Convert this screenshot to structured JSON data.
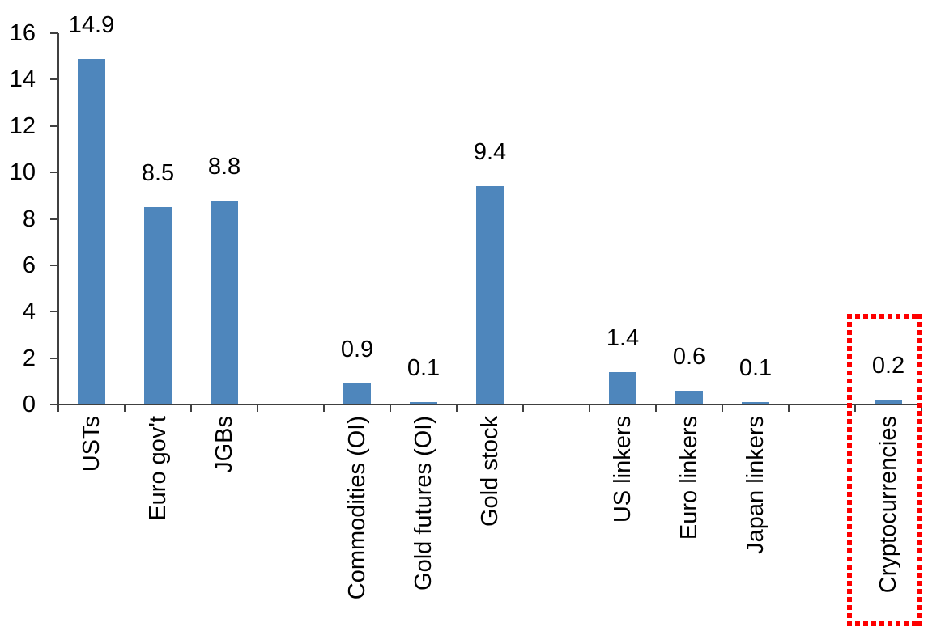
{
  "chart_data": {
    "type": "bar",
    "title": "",
    "xlabel": "",
    "ylabel": "",
    "categories": [
      "USTs",
      "Euro gov't",
      "JGBs",
      "Commodities (OI)",
      "Gold futures (OI)",
      "Gold stock",
      "US linkers",
      "Euro linkers",
      "Japan linkers",
      "Cryptocurrencies"
    ],
    "values": [
      14.9,
      8.5,
      8.8,
      0.9,
      0.1,
      9.4,
      1.4,
      0.6,
      0.1,
      0.2
    ],
    "data_labels": [
      "14.9",
      "8.5",
      "8.8",
      "0.9",
      "0.1",
      "9.4",
      "1.4",
      "0.6",
      "0.1",
      "0.2"
    ],
    "slots": [
      0,
      1,
      2,
      4,
      5,
      6,
      8,
      9,
      10,
      12
    ],
    "total_slots": 13,
    "ylim": [
      0,
      16
    ],
    "yticks": [
      0,
      2,
      4,
      6,
      8,
      10,
      12,
      14,
      16
    ],
    "grid": false,
    "legend": "none",
    "bar_color": "#4E86BC",
    "axis_color": "#404040",
    "text_color": "#000000",
    "highlight": {
      "category": "Cryptocurrencies",
      "shape": "red-dotted-rectangle",
      "color": "#FE0000",
      "label_value": "0.2"
    }
  }
}
